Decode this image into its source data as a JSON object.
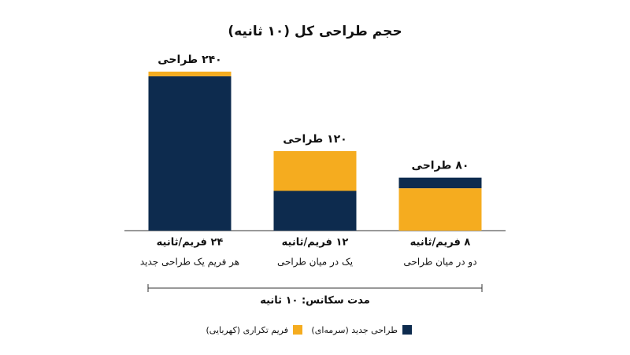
{
  "chart_data": {
    "type": "stacked-bar",
    "title": "حجم طراحی کل (۱۰ ثانیه)",
    "categories": [
      "۲۴ فریم/ثانیه",
      "۱۲ فریم/ثانیه",
      "۸ فریم/ثانیه"
    ],
    "category_subtitles": [
      "هر فریم یک طراحی جدید",
      "یک در میان طراحی",
      "دو در میان طراحی"
    ],
    "total_labels": [
      "۲۴۰ طراحی",
      "۱۲۰ طراحی",
      "۸۰ طراحی"
    ],
    "series": [
      {
        "name": "طراحی جدید (سرمه‌ای)",
        "color": "#0d2b4e",
        "values": [
          233,
          60,
          16
        ]
      },
      {
        "name": "فریم تکراری (کهربایی)",
        "color": "#f5ac1f",
        "values": [
          7,
          60,
          64
        ]
      }
    ],
    "stack_order": [
      [
        0,
        1
      ],
      [
        0,
        1
      ],
      [
        1,
        0
      ]
    ],
    "ylim": [
      0,
      240
    ],
    "x_axis_label": "مدت سکانس: ۱۰ ثانیه"
  }
}
